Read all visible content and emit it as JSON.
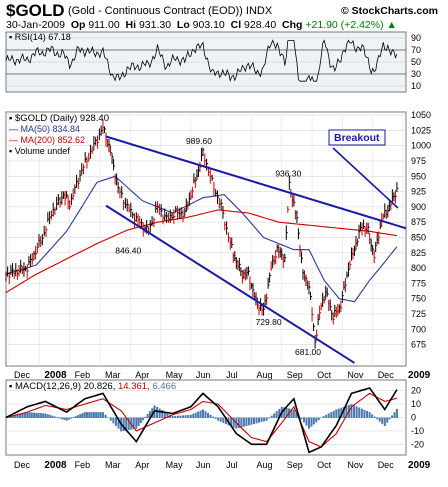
{
  "header": {
    "symbol": "$GOLD",
    "description": "(Gold - Continuous Contract (EOD))",
    "exchange": "INDX",
    "watermark": "© StockCharts.com",
    "date": "30-Jan-2009",
    "open_label": "Op",
    "open": "911.00",
    "high_label": "Hi",
    "high": "931.30",
    "low_label": "Lo",
    "low": "903.10",
    "close_label": "Cl",
    "close": "928.40",
    "change_label": "Chg",
    "change": "+21.90 (+2.42%)",
    "change_arrow": "▲"
  },
  "colors": {
    "price_up": "#000000",
    "price_down": "#cc0000",
    "ma50": "#2b3a9a",
    "ma200": "#cc0000",
    "trendline": "#1a1aaa",
    "macd_line": "#000000",
    "signal_line": "#cc0000",
    "histogram": "#4a7ab0",
    "panel_bg_top": "#eef3f8",
    "callout_bg": "#ffffff"
  },
  "chart_data": [
    {
      "type": "line",
      "name": "RSI(14)",
      "legend": "RSI(14) 67.18",
      "yticks": [
        10,
        30,
        50,
        70,
        90
      ],
      "ylim": [
        0,
        100
      ],
      "overbought": 70,
      "oversold": 30,
      "grid": true
    },
    {
      "type": "line",
      "title": "$GOLD (Daily) 928.40",
      "legend": [
        "MA(50) 834.84",
        "MA(200) 852.62",
        "Volume undef"
      ],
      "xlabels": [
        "Dec",
        "2008",
        "Feb",
        "Mar",
        "Apr",
        "May",
        "Jun",
        "Jul",
        "Aug",
        "Sep",
        "Oct",
        "Nov",
        "Dec",
        "2009"
      ],
      "ylim": [
        640,
        1055
      ],
      "yticks": [
        675,
        700,
        725,
        750,
        775,
        800,
        825,
        850,
        875,
        900,
        925,
        950,
        975,
        1000,
        1025,
        1050
      ],
      "price": {
        "t": [
          0,
          0.7,
          1.2,
          1.5,
          1.9,
          2.1,
          2.5,
          2.9,
          3.2,
          3.45,
          3.7,
          4.0,
          4.3,
          4.7,
          5.0,
          5.3,
          5.6,
          5.9,
          6.1,
          6.35,
          6.5,
          6.8,
          7.1,
          7.4,
          7.6,
          7.8,
          8.0,
          8.25,
          8.5,
          8.75,
          8.95,
          9.2,
          9.35,
          9.6,
          9.8,
          10.0,
          10.2,
          10.4,
          10.55,
          10.8,
          11.05,
          11.3,
          11.55,
          11.75,
          11.95,
          12.15,
          12.4,
          12.65,
          12.9
        ],
        "v": [
          790,
          800,
          850,
          890,
          920,
          905,
          960,
          1000,
          1030,
          990,
          930,
          900,
          880,
          860,
          900,
          880,
          890,
          890,
          920,
          960,
          989.6,
          940,
          900,
          840,
          810,
          790,
          790,
          745,
          729.8,
          800,
          830,
          815,
          936.3,
          880,
          790,
          770,
          681,
          740,
          760,
          720,
          740,
          800,
          840,
          870,
          860,
          820,
          880,
          900,
          928.4
        ]
      },
      "ma50": {
        "t": [
          0,
          1,
          2,
          3,
          3.6,
          4.5,
          5.5,
          6.5,
          7.2,
          7.8,
          8.5,
          9.0,
          9.5,
          10.0,
          10.5,
          11.0,
          11.5,
          12.0,
          12.5,
          12.9
        ],
        "v": [
          790,
          805,
          860,
          940,
          950,
          910,
          890,
          915,
          920,
          890,
          850,
          840,
          830,
          830,
          780,
          750,
          745,
          780,
          810,
          835
        ]
      },
      "ma200": {
        "t": [
          0,
          1,
          2,
          3,
          4,
          5,
          6,
          7,
          8,
          9,
          10,
          11,
          12,
          12.9
        ],
        "v": [
          760,
          790,
          815,
          840,
          862,
          875,
          883,
          895,
          890,
          875,
          870,
          865,
          860,
          853
        ]
      },
      "trendlines": [
        {
          "from": {
            "t": 3.3,
            "v": 1015
          },
          "to": {
            "t": 13.2,
            "v": 865
          }
        },
        {
          "from": {
            "t": 3.3,
            "v": 902
          },
          "to": {
            "t": 11.5,
            "v": 645
          }
        }
      ],
      "annotations": [
        {
          "text": "989.60",
          "t": 6.4,
          "v": 989.6
        },
        {
          "text": "936.30",
          "t": 9.35,
          "v": 936.3
        },
        {
          "text": "846.40",
          "t": 4.2,
          "v": 846.4
        },
        {
          "text": "729.80",
          "t": 8.5,
          "v": 729.8
        },
        {
          "text": "681.00",
          "t": 10.0,
          "v": 681.0
        }
      ],
      "callout": "Breakout"
    },
    {
      "type": "line",
      "name": "MACD(12,26,9)",
      "legend_values": [
        "20.826",
        "14.361",
        "6.466"
      ],
      "yticks": [
        -20,
        -10,
        0,
        10,
        20
      ],
      "ylim": [
        -28,
        28
      ],
      "macd": {
        "t": [
          0,
          0.7,
          1.3,
          2.0,
          2.6,
          3.2,
          3.8,
          4.3,
          4.9,
          5.5,
          6.1,
          6.5,
          7.0,
          7.6,
          8.1,
          8.6,
          9.1,
          9.5,
          10.0,
          10.4,
          10.9,
          11.4,
          12.0,
          12.5,
          12.9
        ],
        "v": [
          0,
          8,
          12,
          4,
          14,
          18,
          -5,
          -18,
          5,
          3,
          8,
          18,
          8,
          -12,
          -20,
          -20,
          4,
          14,
          -26,
          -22,
          -6,
          18,
          22,
          6,
          20.8
        ]
      },
      "signal": {
        "t": [
          0,
          0.7,
          1.3,
          2.0,
          2.6,
          3.2,
          3.8,
          4.3,
          4.9,
          5.5,
          6.1,
          6.5,
          7.0,
          7.6,
          8.1,
          8.6,
          9.1,
          9.5,
          10.0,
          10.4,
          10.9,
          11.4,
          12.0,
          12.5,
          12.9
        ],
        "v": [
          0,
          4,
          9,
          6,
          10,
          14,
          5,
          -10,
          -4,
          2,
          6,
          12,
          10,
          -4,
          -15,
          -18,
          -4,
          8,
          -18,
          -22,
          -12,
          8,
          18,
          12,
          14.4
        ]
      },
      "xlabels": [
        "Dec",
        "2008",
        "Feb",
        "Mar",
        "Apr",
        "May",
        "Jun",
        "Jul",
        "Aug",
        "Sep",
        "Oct",
        "Nov",
        "Dec",
        "2009"
      ]
    }
  ]
}
